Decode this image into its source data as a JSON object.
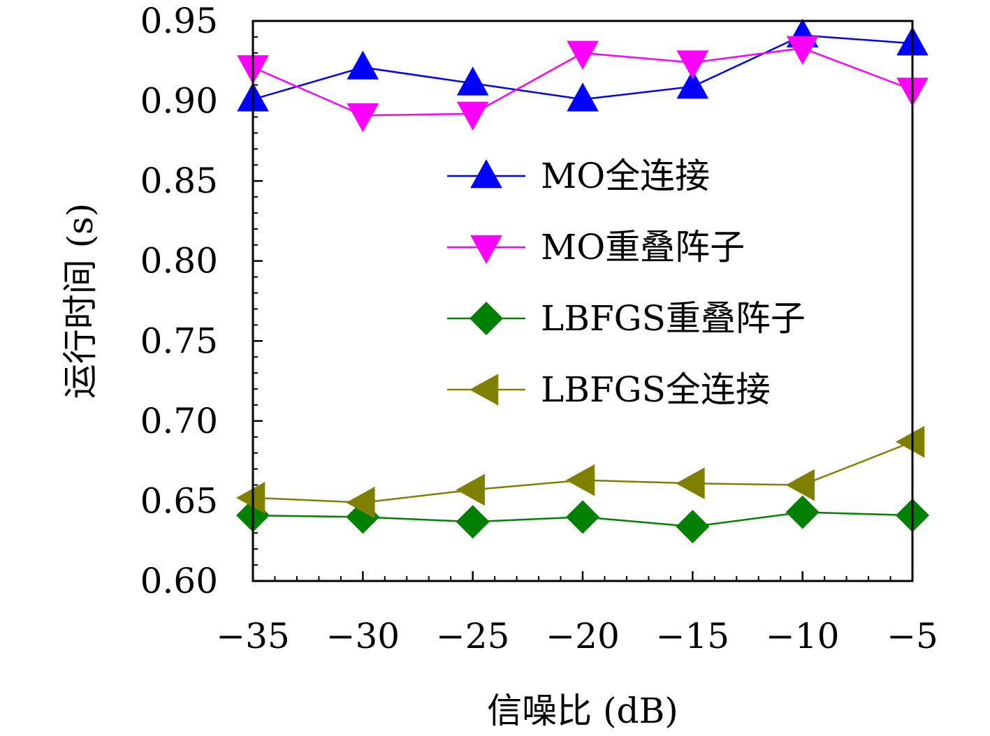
{
  "chart_data": {
    "type": "line",
    "xlabel": "信噪比 (dB)",
    "ylabel": "运行时间 (s)",
    "x": [
      -35,
      -30,
      -25,
      -20,
      -15,
      -10,
      -5
    ],
    "x_tick_labels": [
      "−35",
      "−30",
      "−25",
      "−20",
      "−15",
      "−10",
      "−5"
    ],
    "xlim": [
      -35,
      -5
    ],
    "ylim": [
      0.6,
      0.95
    ],
    "y_ticks": [
      0.6,
      0.65,
      0.7,
      0.75,
      0.8,
      0.85,
      0.9,
      0.95
    ],
    "y_tick_labels": [
      "0.60",
      "0.65",
      "0.70",
      "0.75",
      "0.80",
      "0.85",
      "0.90",
      "0.95"
    ],
    "grid": false,
    "legend_position": "center-right",
    "series": [
      {
        "name": "MO全连接",
        "color": "#0000ff",
        "marker": "triangle-up",
        "values": [
          0.901,
          0.921,
          0.911,
          0.901,
          0.909,
          0.941,
          0.936
        ]
      },
      {
        "name": "MO重叠阵子",
        "color": "#ff00ff",
        "marker": "triangle-down",
        "values": [
          0.921,
          0.891,
          0.892,
          0.93,
          0.924,
          0.933,
          0.907
        ]
      },
      {
        "name": "LBFGS重叠阵子",
        "color": "#008000",
        "marker": "diamond",
        "values": [
          0.641,
          0.64,
          0.637,
          0.64,
          0.634,
          0.643,
          0.641
        ]
      },
      {
        "name": "LBFGS全连接",
        "color": "#808000",
        "marker": "triangle-left",
        "values": [
          0.652,
          0.649,
          0.657,
          0.663,
          0.661,
          0.66,
          0.687
        ]
      }
    ]
  }
}
